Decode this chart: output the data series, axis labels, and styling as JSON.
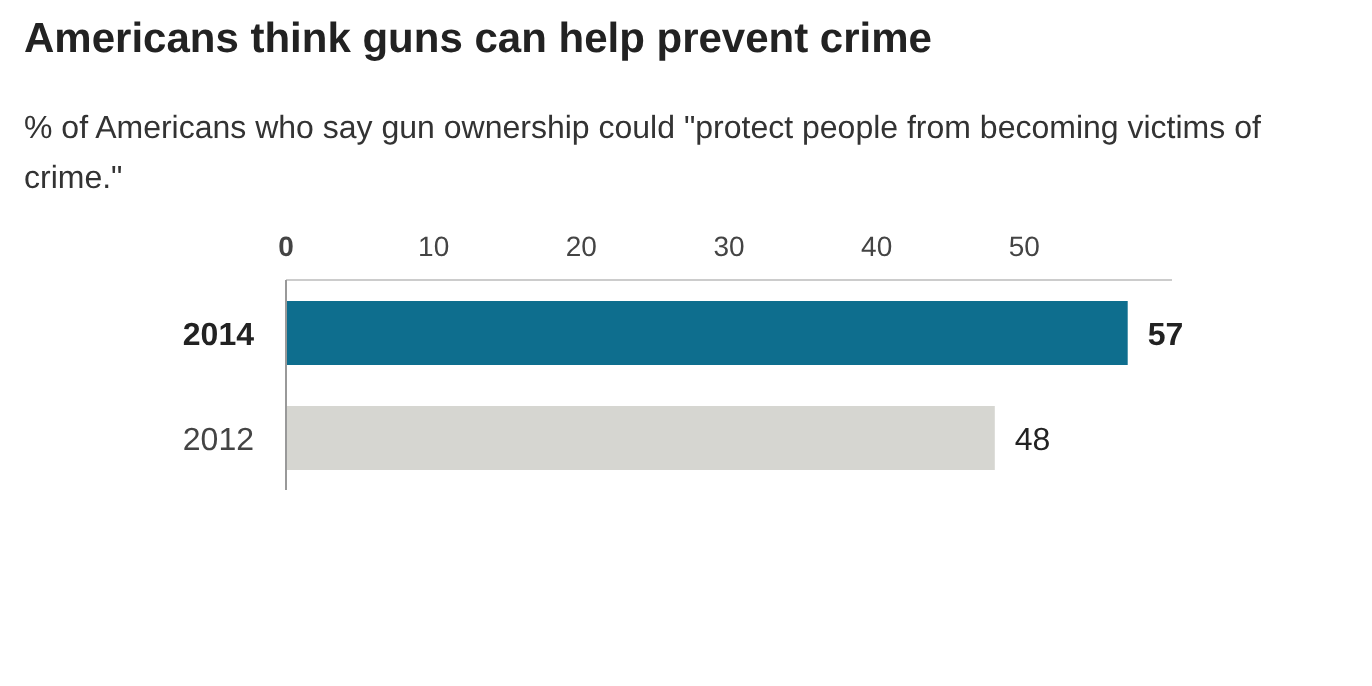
{
  "chart_data": {
    "type": "bar",
    "orientation": "horizontal",
    "title": "Americans think guns can help prevent crime",
    "subtitle": "% of Americans who say gun ownership could \"protect people from becoming victims of crime.\"",
    "categories": [
      "2014",
      "2012"
    ],
    "values": [
      57,
      48
    ],
    "colors": [
      "#0e6e8e",
      "#d6d6d1"
    ],
    "xlim": [
      0,
      60
    ],
    "xticks": [
      0,
      10,
      20,
      30,
      40,
      50
    ],
    "data_labels": true,
    "grid": false
  }
}
